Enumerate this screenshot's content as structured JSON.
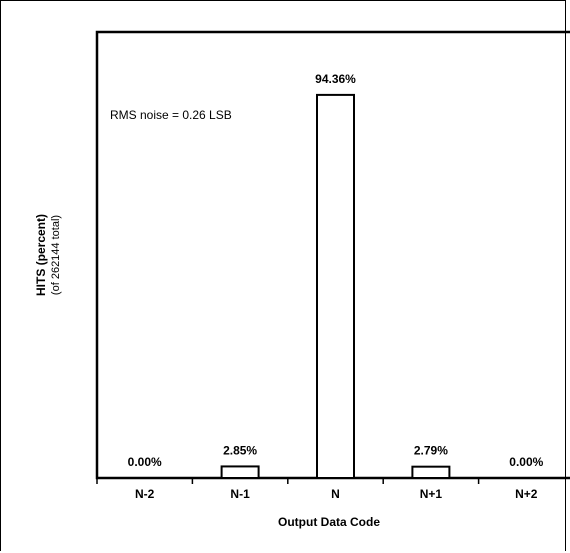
{
  "chart_data": {
    "type": "bar",
    "categories": [
      "N-2",
      "N-1",
      "N",
      "N+1",
      "N+2"
    ],
    "values": [
      0.0,
      2.85,
      94.36,
      2.79,
      0.0
    ],
    "value_labels": [
      "0.00%",
      "2.85%",
      "94.36%",
      "2.79%",
      "0.00%"
    ],
    "ylabel": "HITS (percent)",
    "ylabel_sub": "(of 262144 total)",
    "xlabel": "Output Data Code",
    "annotation": "RMS noise = 0.26 LSB",
    "ylim": [
      0,
      100
    ],
    "grid": false,
    "bar_fill": "#ffffff",
    "bar_stroke": "#000000"
  }
}
